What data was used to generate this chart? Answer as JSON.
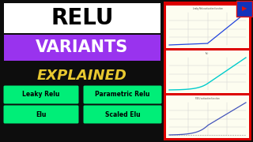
{
  "background_color": "#0d0d0d",
  "title_text": "RELU",
  "title_bg": "#ffffff",
  "title_color": "#000000",
  "title_fontsize": 20,
  "variants_text": "VARIANTS",
  "variants_bg": "#9933ee",
  "variants_color": "#ffffff",
  "variants_fontsize": 15,
  "explained_text": "EXPLAINED",
  "explained_color": "#e8c830",
  "explained_fontsize": 13,
  "buttons": [
    "Leaky Relu",
    "Parametric Relu",
    "Elu",
    "Scaled Elu"
  ],
  "button_bg": "#00ee78",
  "button_color": "#000000",
  "button_fontsize": 5.5,
  "chart_border_color": "#dd0000",
  "chart_bg": "#fdfdf0",
  "chart_bg2": "#f5f5f5",
  "chart1_color": "#2244dd",
  "chart2_color": "#00cccc",
  "chart3_color": "#4455bb",
  "chart_grid_color": "#cccccc",
  "chart_text_color": "#444444",
  "icon_bg": "#1133bb",
  "icon_color": "#dd1111"
}
